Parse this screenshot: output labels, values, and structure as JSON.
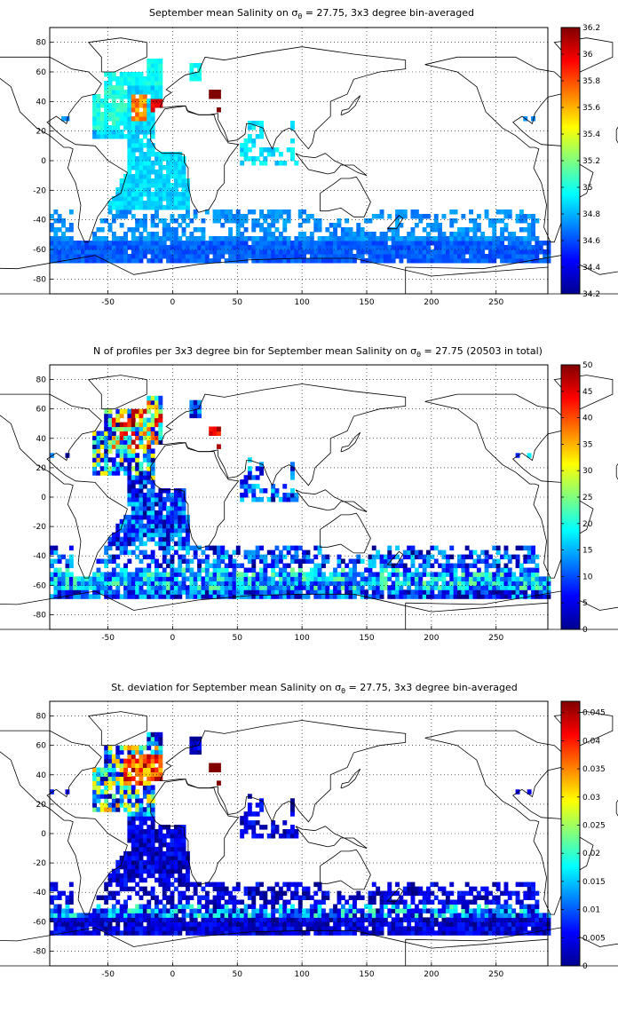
{
  "panels": [
    {
      "title_pre": "September mean Salinity on σ",
      "title_sub": "θ",
      "title_post": " = 27.75, 3x3 degree bin-averaged",
      "colorbar": {
        "min": 34.2,
        "max": 36.2,
        "ticks": [
          "34.2",
          "34.4",
          "34.6",
          "34.8",
          "35",
          "35.2",
          "35.4",
          "35.6",
          "35.8",
          "36",
          "36.2"
        ]
      }
    },
    {
      "title_pre": "N of profiles per 3x3 degree bin for September mean Salinity on σ",
      "title_sub": "θ",
      "title_post": " = 27.75 (20503 in total)",
      "colorbar": {
        "min": 0,
        "max": 50,
        "ticks": [
          "0",
          "5",
          "10",
          "15",
          "20",
          "25",
          "30",
          "35",
          "40",
          "45",
          "50"
        ]
      }
    },
    {
      "title_pre": "St. deviation for September mean Salinity on σ",
      "title_sub": "θ",
      "title_post": " = 27.75, 3x3 degree bin-averaged",
      "colorbar": {
        "min": 0,
        "max": 0.047,
        "ticks": [
          "0",
          "0.005",
          "0.01",
          "0.015",
          "0.02",
          "0.025",
          "0.03",
          "0.035",
          "0.04",
          "0.045"
        ]
      }
    }
  ],
  "map": {
    "lon_range": [
      -95,
      290
    ],
    "lat_range": [
      -90,
      90
    ],
    "x_ticks": [
      "-50",
      "0",
      "50",
      "100",
      "150",
      "200",
      "250"
    ],
    "y_ticks": [
      "80",
      "60",
      "40",
      "20",
      "0",
      "-20",
      "-40",
      "-60",
      "-80"
    ],
    "grid": "dotted",
    "colormap": "jet",
    "bin_size_deg": 3
  }
}
